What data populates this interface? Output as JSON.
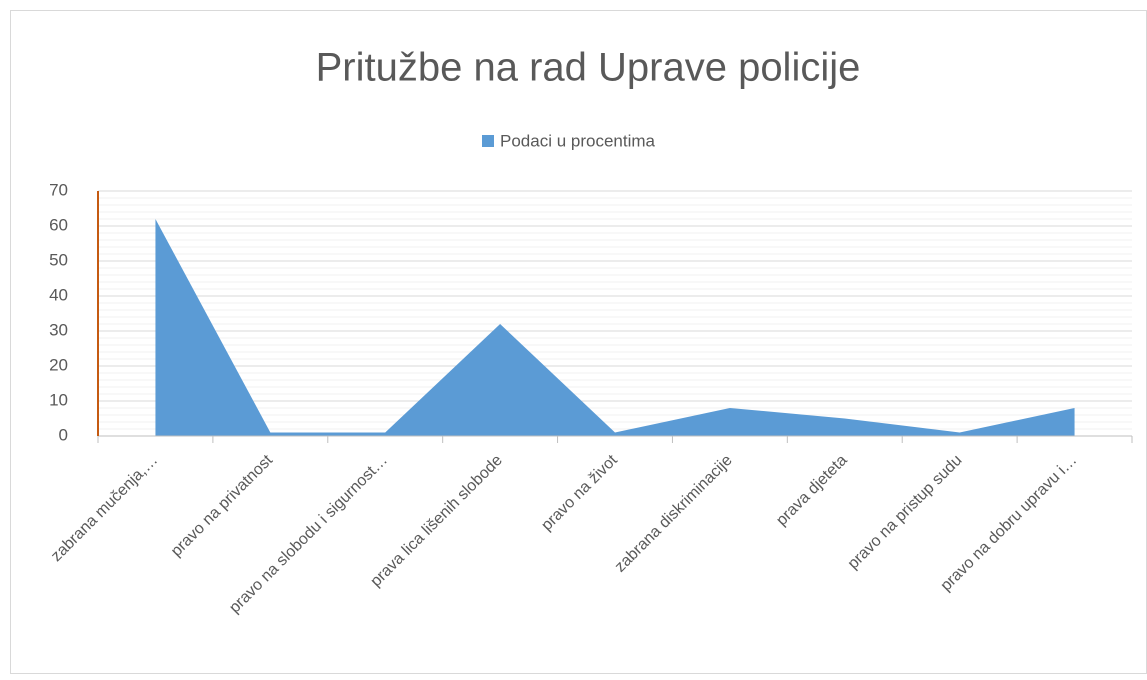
{
  "chart_data": {
    "type": "area",
    "title": "Pritužbe na rad Uprave policije",
    "categories": [
      "zabrana mučenja,…",
      "pravo na privatnost",
      "pravo na slobodu i sigurnost…",
      "prava lica lišenih slobode",
      "pravo na život",
      "zabrana diskriminacije",
      "prava djeteta",
      "pravo na pristup sudu",
      "pravo na dobru upravu i…"
    ],
    "series": [
      {
        "name": "Podaci u procentima",
        "color": "#5b9bd5",
        "values": [
          62,
          1,
          1,
          32,
          1,
          8,
          5,
          1,
          8
        ]
      }
    ],
    "ylim": [
      0,
      70
    ],
    "yticks": [
      0,
      10,
      20,
      30,
      40,
      50,
      60,
      70
    ],
    "grid": true,
    "minor_grid": true,
    "legend": "top"
  }
}
